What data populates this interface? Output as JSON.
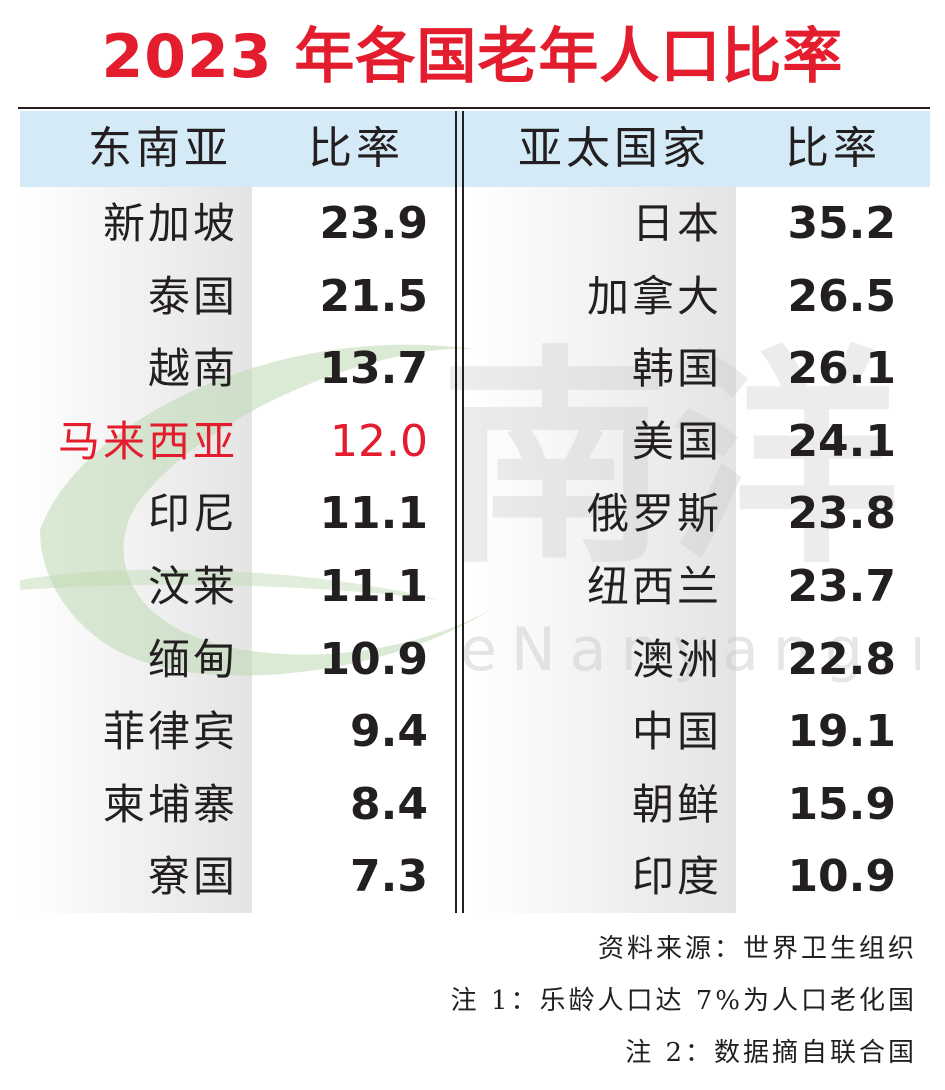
{
  "title": "2023 年各国老年人口比率",
  "headers": {
    "left_group": "东南亚",
    "left_value": "比率",
    "right_group": "亚太国家",
    "right_value": "比率"
  },
  "colors": {
    "title": "#e31d2d",
    "highlight": "#e31d2d",
    "header_bg": "#d5eaf7"
  },
  "notes": {
    "source": "资料来源：世界卫生组织",
    "note1": "注 1：乐龄人口达 7%为人口老化国",
    "note2": "注 2：数据摘自联合国"
  },
  "chart_data": [
    {
      "type": "table",
      "title": "东南亚",
      "columns": [
        "东南亚",
        "比率"
      ],
      "rows": [
        {
          "name": "新加坡",
          "value": "23.9"
        },
        {
          "name": "泰国",
          "value": "21.5"
        },
        {
          "name": "越南",
          "value": "13.7"
        },
        {
          "name": "马来西亚",
          "value": "12.0",
          "highlight": true
        },
        {
          "name": "印尼",
          "value": "11.1"
        },
        {
          "name": "汶莱",
          "value": "11.1"
        },
        {
          "name": "缅甸",
          "value": "10.9"
        },
        {
          "name": "菲律宾",
          "value": "9.4"
        },
        {
          "name": "柬埔寨",
          "value": "8.4"
        },
        {
          "name": "寮国",
          "value": "7.3"
        }
      ]
    },
    {
      "type": "table",
      "title": "亚太国家",
      "columns": [
        "亚太国家",
        "比率"
      ],
      "rows": [
        {
          "name": "日本",
          "value": "35.2"
        },
        {
          "name": "加拿大",
          "value": "26.5"
        },
        {
          "name": "韩国",
          "value": "26.1"
        },
        {
          "name": "美国",
          "value": "24.1"
        },
        {
          "name": "俄罗斯",
          "value": "23.8"
        },
        {
          "name": "纽西兰",
          "value": "23.7"
        },
        {
          "name": "澳洲",
          "value": "22.8"
        },
        {
          "name": "中国",
          "value": "19.1"
        },
        {
          "name": "朝鲜",
          "value": "15.9"
        },
        {
          "name": "印度",
          "value": "10.9"
        }
      ]
    }
  ]
}
